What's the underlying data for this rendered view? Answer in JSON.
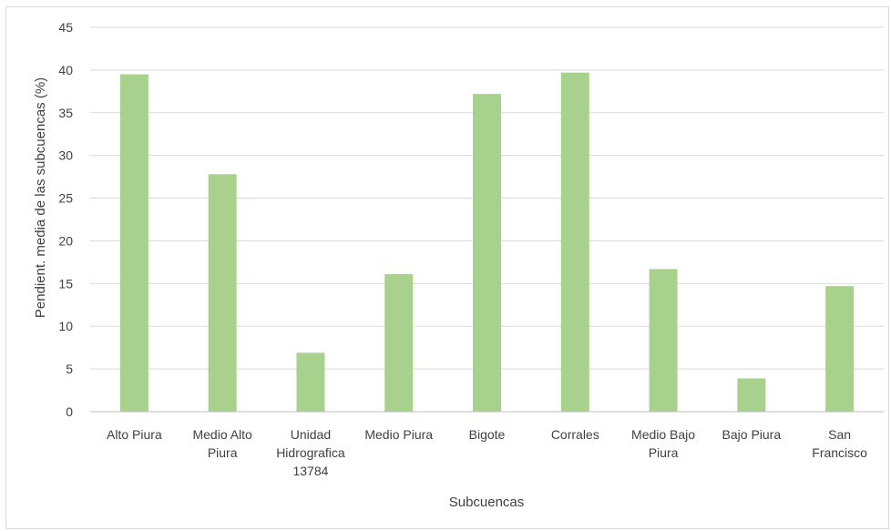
{
  "chart_data": {
    "type": "bar",
    "title": "",
    "xlabel": "Subcuencas",
    "ylabel": "Pendient. media de las subcuencas (%)",
    "ylim": [
      0,
      45
    ],
    "yticks": [
      0,
      5,
      10,
      15,
      20,
      25,
      30,
      35,
      40,
      45
    ],
    "grid": true,
    "bar_color": "#a9d18e",
    "categories": [
      [
        "Alto Piura"
      ],
      [
        "Medio Alto",
        "Piura"
      ],
      [
        "Unidad",
        "Hidrografica",
        "13784"
      ],
      [
        "Medio Piura"
      ],
      [
        "Bigote"
      ],
      [
        "Corrales"
      ],
      [
        "Medio Bajo",
        "Piura"
      ],
      [
        "Bajo Piura"
      ],
      [
        "San",
        "Francisco"
      ]
    ],
    "values": [
      39.5,
      27.8,
      6.9,
      16.1,
      37.2,
      39.7,
      16.7,
      3.9,
      14.7
    ]
  }
}
